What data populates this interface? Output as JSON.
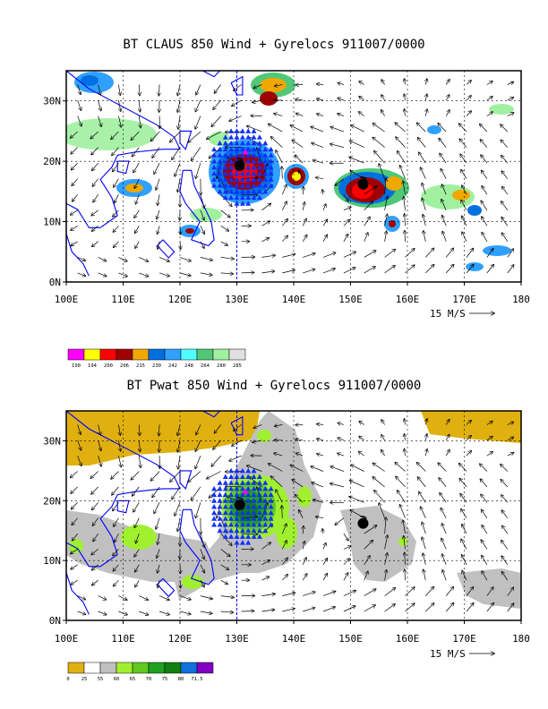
{
  "panel1": {
    "title": "BT CLAUS 850 Wind + Gyrelocs 911007/0000",
    "lat_labels": [
      "30N",
      "20N",
      "10N",
      "0N"
    ],
    "lon_labels": [
      "100E",
      "110E",
      "120E",
      "130E",
      "140E",
      "150E",
      "160E",
      "170E",
      "180"
    ],
    "scale_label": "15 M/S",
    "colorbar_labels": [
      "190",
      "194",
      "200",
      "206",
      "215",
      "230",
      "242",
      "248",
      "264",
      "280",
      "285"
    ],
    "colorbar_colors": [
      "#ff00ff",
      "#ffff00",
      "#ff0000",
      "#a00000",
      "#f0a800",
      "#0070e0",
      "#30a0ff",
      "#50ffff",
      "#50c878",
      "#a0f0a0",
      "#e0e0e0"
    ]
  },
  "panel2": {
    "title": "BT Pwat 850 Wind + Gyrelocs 911007/0000",
    "lat_labels": [
      "30N",
      "20N",
      "10N",
      "0N"
    ],
    "lon_labels": [
      "100E",
      "110E",
      "120E",
      "130E",
      "140E",
      "150E",
      "160E",
      "170E",
      "180"
    ],
    "scale_label": "15 M/S",
    "colorbar_labels": [
      "0",
      "25",
      "55",
      "60",
      "65",
      "70",
      "75",
      "80",
      "71.5"
    ],
    "colorbar_colors": [
      "#e0b010",
      "#ffffff",
      "#c0c0c0",
      "#a0f030",
      "#60c820",
      "#20a020",
      "#108010",
      "#1070e0",
      "#8000c0"
    ]
  },
  "map_extent": {
    "lon_range": [
      100,
      180
    ],
    "lat_range": [
      0,
      35
    ]
  },
  "markers": {
    "gyre_centers": [
      {
        "lon": 130.5,
        "lat": 19.3
      },
      {
        "lon": 152.2,
        "lat": 16.2
      }
    ],
    "magenta_marker": {
      "lon": 131.5,
      "lat": 21.5
    },
    "triangle_colors": {
      "triangle": "#1030ff",
      "coastline": "#0000ff",
      "center": "#000000"
    }
  }
}
